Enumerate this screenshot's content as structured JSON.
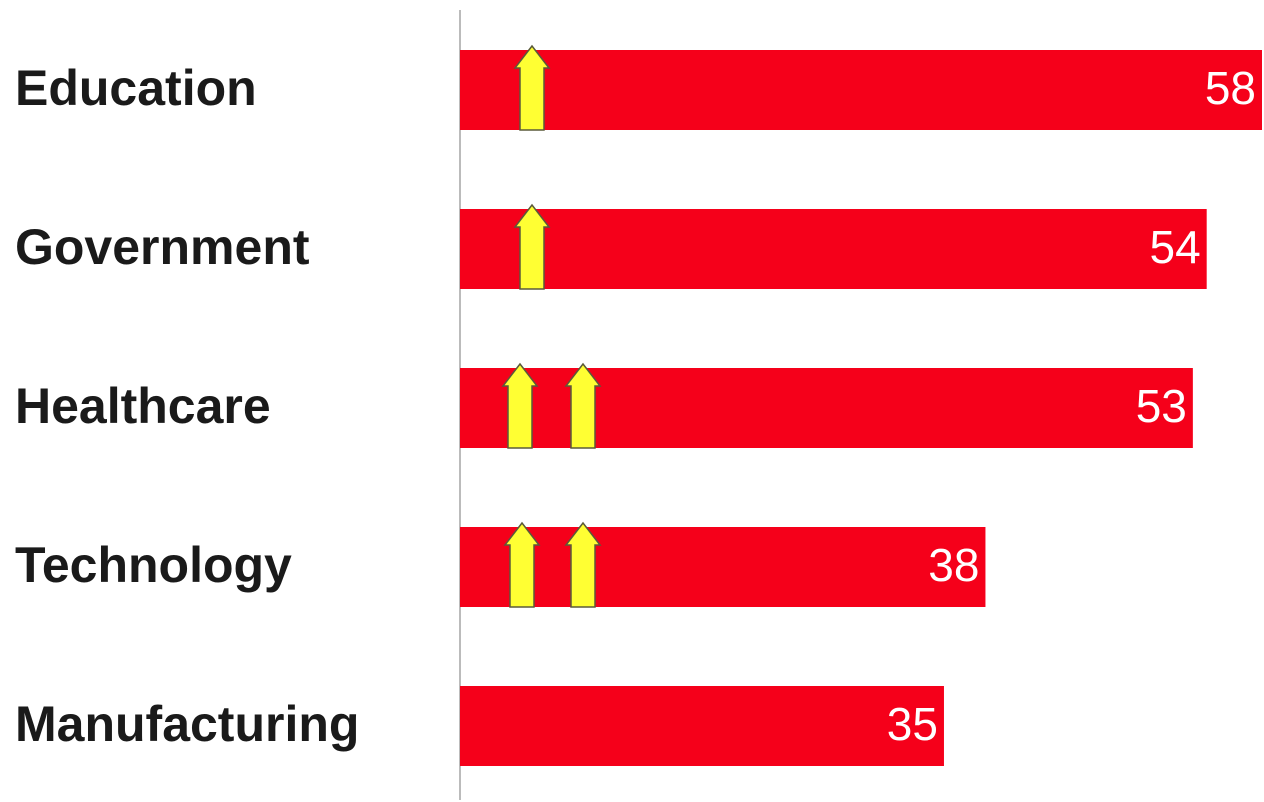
{
  "chart_data": {
    "type": "hbar",
    "categories": [
      "Education",
      "Government",
      "Healthcare",
      "Technology",
      "Manufacturing"
    ],
    "values": [
      58,
      54,
      53,
      38,
      35
    ],
    "color": "#f5001a"
  }
}
